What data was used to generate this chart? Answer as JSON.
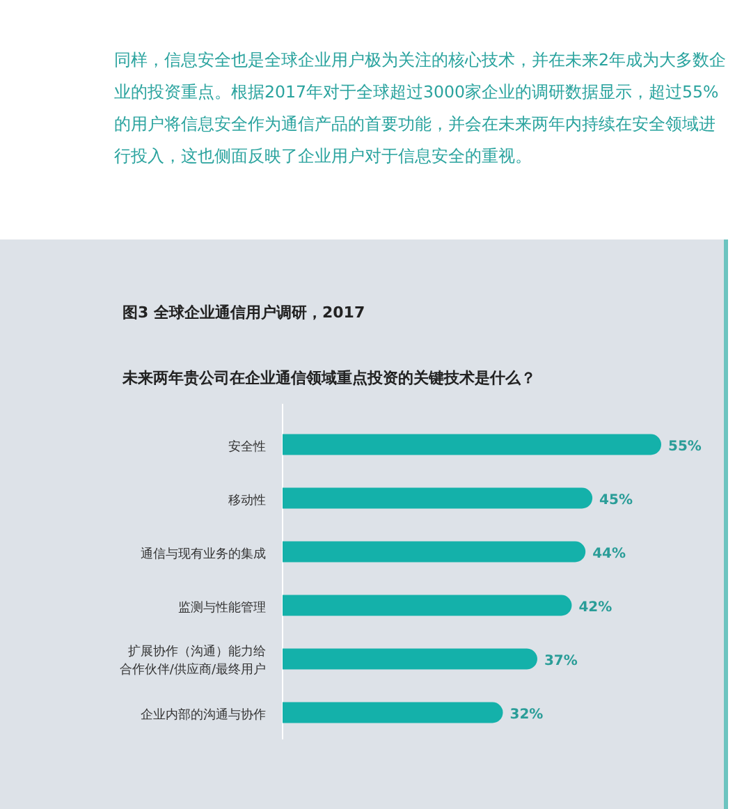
{
  "chart_data": {
    "type": "bar",
    "orientation": "horizontal",
    "title": "图3 全球企业通信用户调研，2017",
    "subtitle": "未来两年贵公司在企业通信领域重点投资的关键技术是什么？",
    "annotations": [
      "同样，信息安全也是全球企业用户极为关注的核心技术，并在未来2年成为大多数企业的投资重点。根据2017年对于全球超过3000家企业的调研数据显示，超过55%的用户将信息安全作为通信产品的首要功能，并会在未来两年内持续在安全领域进行投入，这也侧面反映了企业用户对于信息安全的重视。"
    ],
    "categories": [
      "安全性",
      "移动性",
      "通信与现有业务的集成",
      "监测与性能管理",
      "扩展协作（沟通）能力给合作伙伴/供应商/最终用户",
      "企业内部的沟通与协作"
    ],
    "values": [
      55,
      45,
      44,
      42,
      37,
      32
    ],
    "value_labels": [
      "55%",
      "45%",
      "44%",
      "42%",
      "37%",
      "32%"
    ],
    "color": "#14b1aa"
  }
}
